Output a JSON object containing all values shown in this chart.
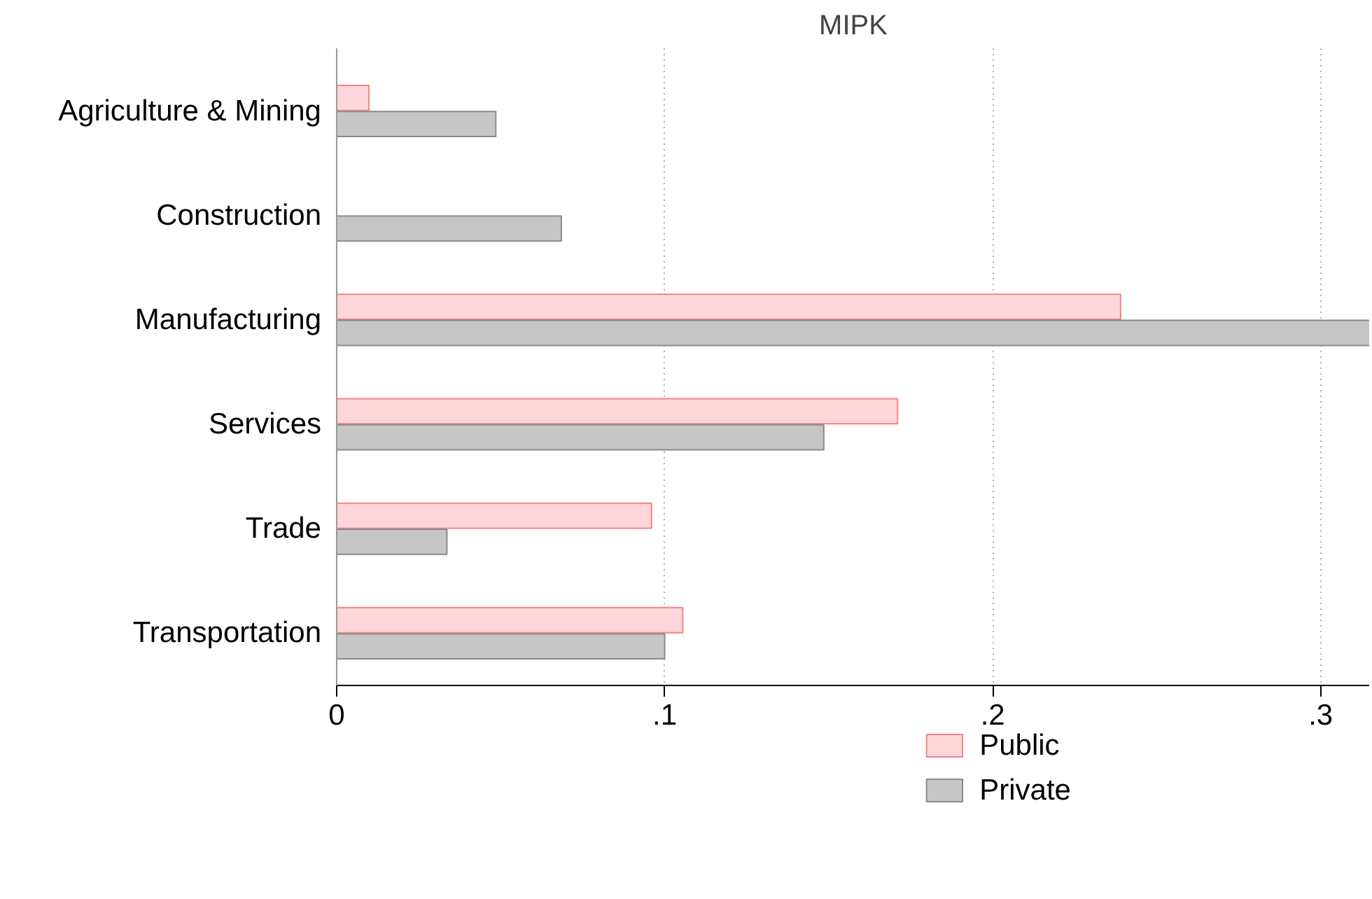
{
  "chart_data": {
    "type": "bar",
    "orientation": "horizontal",
    "title": "MIPK",
    "categories": [
      "Agriculture & Mining",
      "Construction",
      "Manufacturing",
      "Services",
      "Trade",
      "Transportation"
    ],
    "series": [
      {
        "name": "Public",
        "color": "#ffd6d9",
        "values": [
          0.0098,
          null,
          0.239,
          0.171,
          0.096,
          0.1055
        ]
      },
      {
        "name": "Private",
        "color": "#c6c6c6",
        "values": [
          0.0485,
          0.0685,
          0.315,
          0.1485,
          0.0336,
          0.1
        ]
      }
    ],
    "xlim": [
      0,
      0.315
    ],
    "xticks": [
      0,
      {
        "value": 0.1,
        "label": ".1"
      },
      {
        "value": 0.2,
        "label": ".2"
      },
      {
        "value": 0.3,
        "label": ".3"
      }
    ],
    "grid": "x",
    "legend": "bottom"
  }
}
